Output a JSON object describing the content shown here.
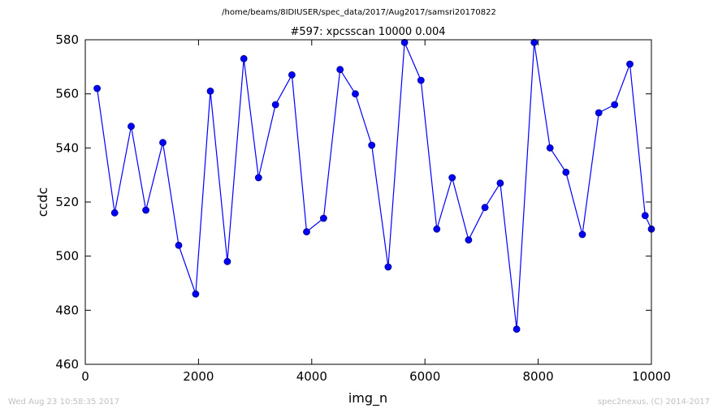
{
  "suptitle": "/home/beams/8IDIUSER/spec_data/2017/Aug2017/samsri20170822",
  "footer": {
    "timestamp": "Wed Aug 23 10:58:35 2017",
    "credit": "spec2nexus, (C) 2014-2017"
  },
  "colors": {
    "series": "#0000ff",
    "marker_edge": "#000080"
  },
  "chart_data": {
    "type": "line",
    "title": "#597: xpcsscan 10000 0.004",
    "xlabel": "img_n",
    "ylabel": "ccdc",
    "xlim": [
      0,
      10000
    ],
    "ylim": [
      460,
      580
    ],
    "xticks": [
      "0",
      "2000",
      "4000",
      "6000",
      "8000",
      "10000"
    ],
    "yticks": [
      "460",
      "480",
      "500",
      "520",
      "540",
      "560",
      "580"
    ],
    "grid": false,
    "legend": "none",
    "markers": "circle",
    "x": [
      210,
      520,
      810,
      1070,
      1370,
      1650,
      1950,
      2210,
      2510,
      2800,
      3060,
      3360,
      3650,
      3910,
      4210,
      4500,
      4770,
      5060,
      5350,
      5640,
      5930,
      6210,
      6480,
      6770,
      7060,
      7330,
      7620,
      7930,
      8210,
      8490,
      8780,
      9070,
      9350,
      9620,
      9890,
      10000
    ],
    "y": [
      562,
      516,
      548,
      517,
      542,
      504,
      486,
      561,
      498,
      573,
      529,
      556,
      567,
      509,
      514,
      569,
      560,
      541,
      496,
      579,
      565,
      510,
      529,
      506,
      518,
      527,
      473,
      579,
      540,
      531,
      508,
      553,
      556,
      571,
      515,
      510
    ]
  }
}
